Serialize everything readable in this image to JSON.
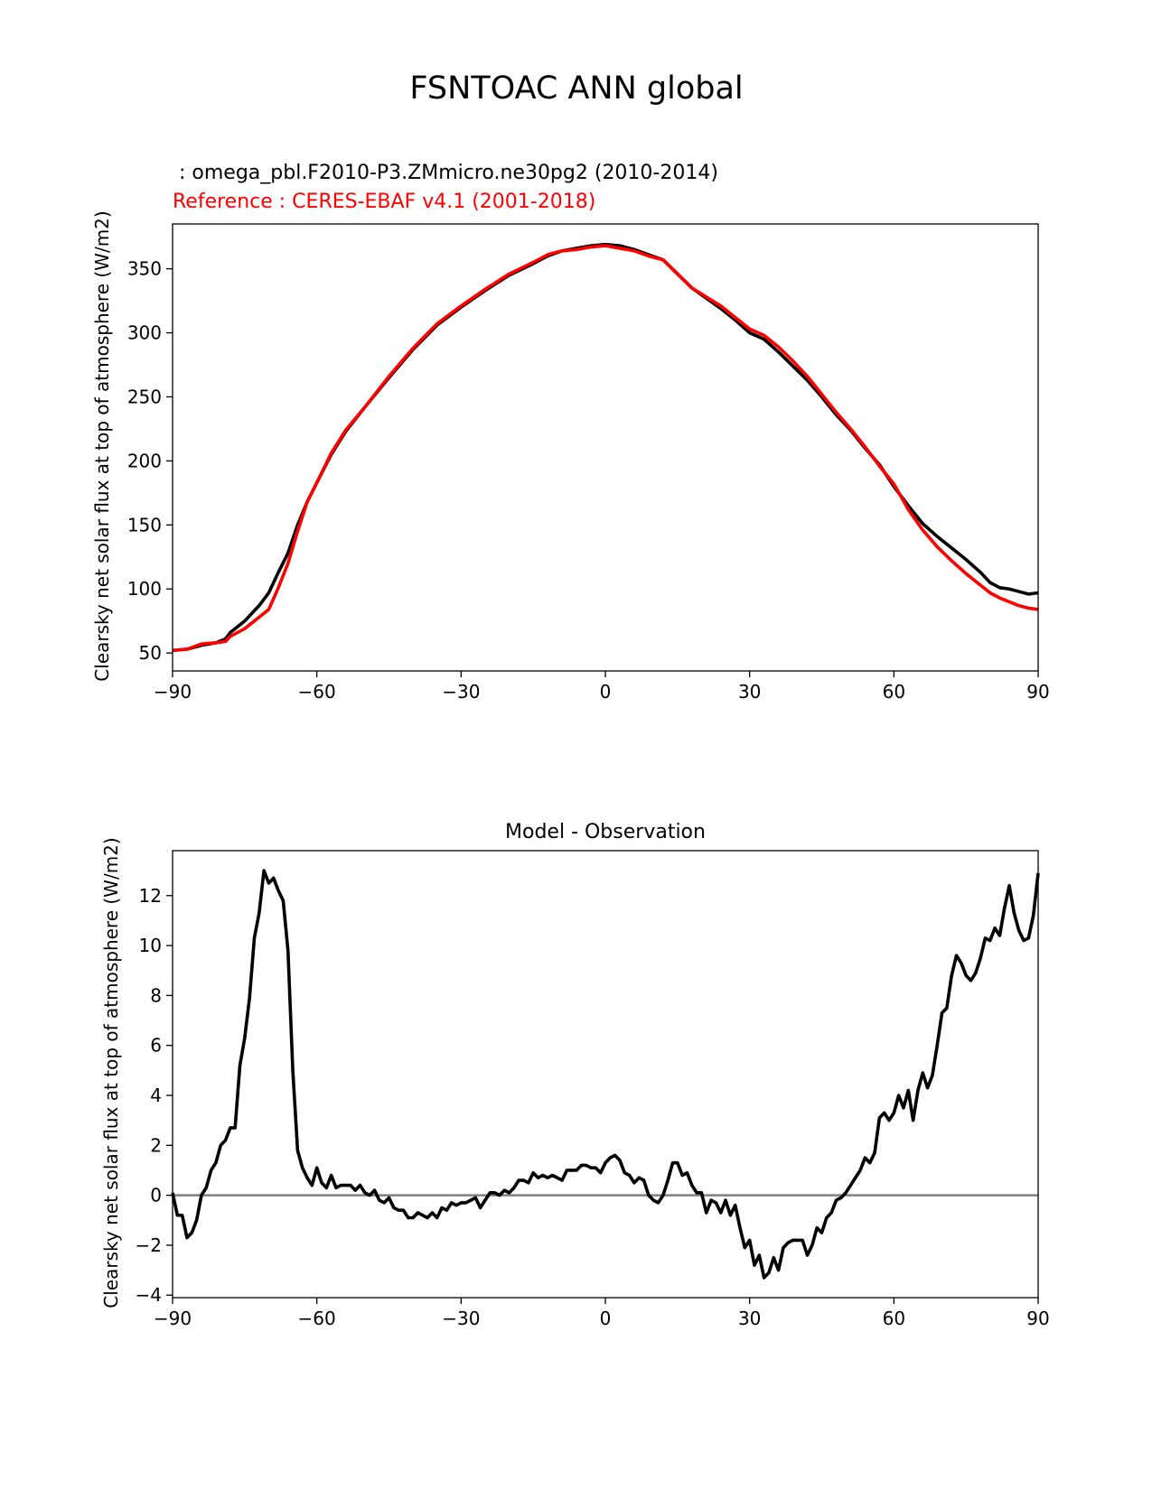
{
  "figure_title": "FSNTOAC ANN global",
  "colors": {
    "test": "#000000",
    "reference": "#ff0000",
    "zero_line": "#808080"
  },
  "chart_data": [
    {
      "type": "line",
      "title_test": " : omega_pbl.F2010-P3.ZMmicro.ne30pg2 (2010-2014)",
      "title_reference": "Reference : CERES-EBAF v4.1 (2001-2018)",
      "xlabel": "",
      "ylabel": "Clearsky net solar flux at top of atmosphere (W/m2)",
      "xlim": [
        -90,
        90
      ],
      "ylim": [
        36,
        385
      ],
      "xticks": [
        -90,
        -60,
        -30,
        0,
        30,
        60,
        90
      ],
      "xtick_labels": [
        "−90",
        "−60",
        "−30",
        "0",
        "30",
        "60",
        "90"
      ],
      "yticks": [
        50,
        100,
        150,
        200,
        250,
        300,
        350
      ],
      "ytick_labels": [
        "50",
        "100",
        "150",
        "200",
        "250",
        "300",
        "350"
      ],
      "series": [
        {
          "name": "test",
          "x": [
            -90,
            -87,
            -84,
            -81,
            -79,
            -78,
            -75,
            -72,
            -70,
            -68,
            -66,
            -64,
            -62,
            -60,
            -57,
            -54,
            -50,
            -45,
            -40,
            -35,
            -30,
            -25,
            -20,
            -15,
            -12,
            -9,
            -6,
            -3,
            0,
            3,
            6,
            9,
            12,
            15,
            18,
            21,
            24,
            27,
            30,
            33,
            36,
            39,
            42,
            45,
            48,
            51,
            54,
            57,
            60,
            63,
            66,
            69,
            72,
            75,
            78,
            80,
            82,
            84,
            86,
            88,
            90
          ],
          "values": [
            52,
            53,
            56,
            58,
            61,
            66,
            75,
            87,
            97,
            113,
            128,
            150,
            168,
            183,
            205,
            223,
            242,
            265,
            287,
            306,
            320,
            333,
            345,
            354,
            360,
            364,
            366,
            368,
            369,
            368,
            365,
            361,
            357,
            346,
            335,
            327,
            319,
            310,
            300,
            295,
            285,
            274,
            263,
            250,
            236,
            224,
            210,
            197,
            180,
            165,
            151,
            141,
            132,
            123,
            113,
            105,
            101,
            100,
            98,
            96,
            97
          ]
        },
        {
          "name": "reference",
          "x": [
            -90,
            -87,
            -84,
            -81,
            -79,
            -78,
            -75,
            -72,
            -70,
            -68,
            -66,
            -64,
            -62,
            -60,
            -57,
            -54,
            -50,
            -45,
            -40,
            -35,
            -30,
            -25,
            -20,
            -15,
            -12,
            -9,
            -6,
            -3,
            0,
            3,
            6,
            9,
            12,
            15,
            18,
            21,
            24,
            27,
            30,
            33,
            36,
            39,
            42,
            45,
            48,
            51,
            54,
            57,
            60,
            63,
            66,
            69,
            72,
            75,
            78,
            80,
            82,
            84,
            86,
            88,
            90
          ],
          "values": [
            52,
            53,
            57,
            58,
            59,
            63,
            69,
            78,
            84,
            101,
            120,
            145,
            168,
            183,
            206,
            224,
            242,
            266,
            288,
            307,
            321,
            334,
            346,
            355,
            361,
            364,
            365,
            367,
            368,
            366,
            364,
            360,
            357,
            346,
            335,
            328,
            321,
            312,
            303,
            298,
            289,
            278,
            266,
            252,
            238,
            225,
            211,
            196,
            182,
            162,
            146,
            133,
            122,
            112,
            103,
            97,
            93,
            90,
            87,
            85,
            84
          ]
        }
      ]
    },
    {
      "type": "line",
      "title": "Model - Observation",
      "xlabel": "",
      "ylabel": "Clearsky net solar flux at top of atmosphere (W/m2)",
      "xlim": [
        -90,
        90
      ],
      "ylim": [
        -4.1,
        13.8
      ],
      "xticks": [
        -90,
        -60,
        -30,
        0,
        30,
        60,
        90
      ],
      "xtick_labels": [
        "−90",
        "−60",
        "−30",
        "0",
        "30",
        "60",
        "90"
      ],
      "yticks": [
        -4,
        -2,
        0,
        2,
        4,
        6,
        8,
        10,
        12
      ],
      "ytick_labels": [
        "−4",
        "−2",
        "0",
        "2",
        "4",
        "6",
        "8",
        "10",
        "12"
      ],
      "zero_line": 0,
      "series": [
        {
          "name": "difference",
          "x": [
            -90,
            -89,
            -88,
            -87,
            -86,
            -85,
            -84,
            -83,
            -82,
            -81,
            -80,
            -79,
            -78,
            -77,
            -76,
            -75,
            -74,
            -73,
            -72,
            -71,
            -70,
            -69,
            -68,
            -67,
            -66,
            -65,
            -64,
            -63,
            -62,
            -61,
            -60,
            -59,
            -58,
            -57,
            -56,
            -55,
            -54,
            -53,
            -52,
            -51,
            -50,
            -49,
            -48,
            -47,
            -46,
            -45,
            -44,
            -43,
            -42,
            -41,
            -40,
            -39,
            -38,
            -37,
            -36,
            -35,
            -34,
            -33,
            -32,
            -31,
            -30,
            -29,
            -28,
            -27,
            -26,
            -25,
            -24,
            -23,
            -22,
            -21,
            -20,
            -19,
            -18,
            -17,
            -16,
            -15,
            -14,
            -13,
            -12,
            -11,
            -10,
            -9,
            -8,
            -7,
            -6,
            -5,
            -4,
            -3,
            -2,
            -1,
            0,
            1,
            2,
            3,
            4,
            5,
            6,
            7,
            8,
            9,
            10,
            11,
            12,
            13,
            14,
            15,
            16,
            17,
            18,
            19,
            20,
            21,
            22,
            23,
            24,
            25,
            26,
            27,
            28,
            29,
            30,
            31,
            32,
            33,
            34,
            35,
            36,
            37,
            38,
            39,
            40,
            41,
            42,
            43,
            44,
            45,
            46,
            47,
            48,
            49,
            50,
            51,
            52,
            53,
            54,
            55,
            56,
            57,
            58,
            59,
            60,
            61,
            62,
            63,
            64,
            65,
            66,
            67,
            68,
            69,
            70,
            71,
            72,
            73,
            74,
            75,
            76,
            77,
            78,
            79,
            80,
            81,
            82,
            83,
            84,
            85,
            86,
            87,
            88,
            89,
            90
          ],
          "values": [
            0.1,
            -0.8,
            -0.8,
            -1.7,
            -1.5,
            -1.0,
            0.0,
            0.3,
            1.0,
            1.3,
            2.0,
            2.2,
            2.7,
            2.7,
            5.2,
            6.3,
            7.9,
            10.3,
            11.3,
            13.0,
            12.5,
            12.7,
            12.2,
            11.8,
            9.8,
            5.0,
            1.8,
            1.1,
            0.7,
            0.4,
            1.1,
            0.5,
            0.3,
            0.8,
            0.3,
            0.4,
            0.4,
            0.4,
            0.2,
            0.4,
            0.1,
            0.0,
            0.2,
            -0.2,
            -0.3,
            -0.1,
            -0.5,
            -0.6,
            -0.6,
            -0.9,
            -0.9,
            -0.7,
            -0.8,
            -0.9,
            -0.7,
            -0.9,
            -0.5,
            -0.6,
            -0.3,
            -0.4,
            -0.3,
            -0.3,
            -0.2,
            -0.1,
            -0.5,
            -0.2,
            0.1,
            0.1,
            0.0,
            0.2,
            0.1,
            0.3,
            0.6,
            0.6,
            0.5,
            0.9,
            0.7,
            0.8,
            0.7,
            0.8,
            0.7,
            0.6,
            1.0,
            1.0,
            1.0,
            1.2,
            1.2,
            1.1,
            1.1,
            0.9,
            1.3,
            1.5,
            1.6,
            1.4,
            0.9,
            0.8,
            0.5,
            0.7,
            0.6,
            0.0,
            -0.2,
            -0.3,
            0.0,
            0.6,
            1.3,
            1.3,
            0.8,
            0.9,
            0.4,
            0.1,
            0.1,
            -0.7,
            -0.2,
            -0.3,
            -0.7,
            -0.2,
            -0.8,
            -0.4,
            -1.3,
            -2.1,
            -1.8,
            -2.8,
            -2.4,
            -3.3,
            -3.1,
            -2.5,
            -3.0,
            -2.1,
            -1.9,
            -1.8,
            -1.8,
            -1.8,
            -2.4,
            -2.0,
            -1.3,
            -1.5,
            -0.9,
            -0.7,
            -0.2,
            -0.1,
            0.1,
            0.4,
            0.7,
            1.0,
            1.5,
            1.3,
            1.7,
            3.1,
            3.3,
            3.0,
            3.3,
            4.0,
            3.5,
            4.2,
            3.0,
            4.2,
            4.9,
            4.3,
            4.8,
            6.0,
            7.3,
            7.5,
            8.8,
            9.6,
            9.3,
            8.8,
            8.6,
            8.9,
            9.5,
            10.3,
            10.2,
            10.7,
            10.4,
            11.5,
            12.4,
            11.3,
            10.6,
            10.2,
            10.3,
            11.2,
            12.9
          ]
        }
      ]
    }
  ]
}
